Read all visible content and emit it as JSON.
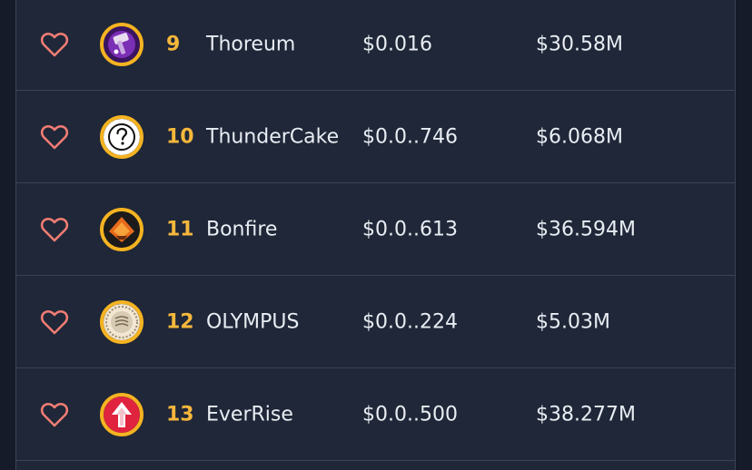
{
  "colors": {
    "background": "#151b28",
    "row_background": "#1f2738",
    "divider": "#3a4457",
    "heart": "#f07c73",
    "rank": "#f6b73c",
    "logo_ring": "#f5b321",
    "text": "#e9edf3"
  },
  "rows": [
    {
      "icon": "heart-outline-icon",
      "logo": "thoreum-logo",
      "rank": "9",
      "name": "Thoreum",
      "price": "$0.016",
      "market_cap": "$30.58M"
    },
    {
      "icon": "heart-outline-icon",
      "logo": "unknown-question-logo",
      "rank": "10",
      "name": "ThunderCake",
      "price": "$0.0..746",
      "market_cap": "$6.068M"
    },
    {
      "icon": "heart-outline-icon",
      "logo": "bonfire-logo",
      "rank": "11",
      "name": "Bonfire",
      "price": "$0.0..613",
      "market_cap": "$36.594M"
    },
    {
      "icon": "heart-outline-icon",
      "logo": "olympus-logo",
      "rank": "12",
      "name": "OLYMPUS",
      "price": "$0.0..224",
      "market_cap": "$5.03M"
    },
    {
      "icon": "heart-outline-icon",
      "logo": "everrise-logo",
      "rank": "13",
      "name": "EverRise",
      "price": "$0.0..500",
      "market_cap": "$38.277M"
    }
  ]
}
